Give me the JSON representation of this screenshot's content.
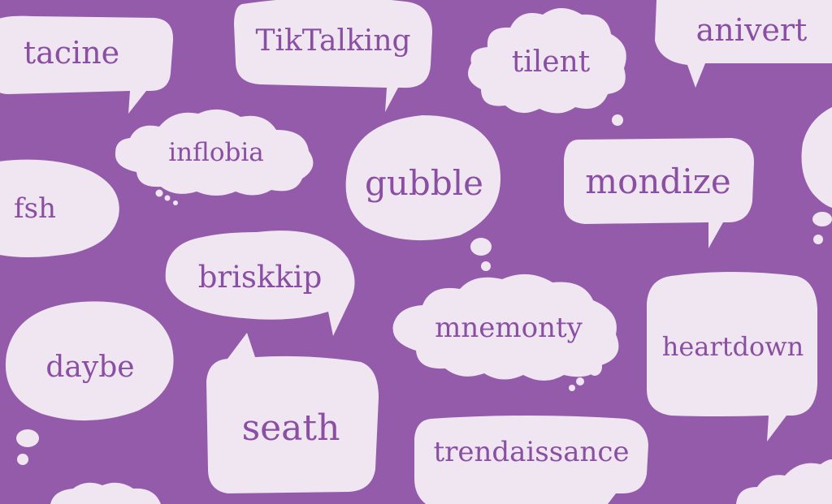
{
  "colors": {
    "background": "#945bab",
    "bubble": "#efe6f1",
    "text": "#8a4fa3"
  },
  "bubbles": [
    {
      "id": "tacine",
      "style": "speech",
      "text": "tacine"
    },
    {
      "id": "tiktalking",
      "style": "speech",
      "text": "TikTalking"
    },
    {
      "id": "tilent",
      "style": "thought",
      "text": "tilent"
    },
    {
      "id": "anivert",
      "style": "speech",
      "text": "anivert"
    },
    {
      "id": "inflobia",
      "style": "thought",
      "text": "inflobia"
    },
    {
      "id": "gubble",
      "style": "thought",
      "text": "gubble"
    },
    {
      "id": "mondize",
      "style": "speech",
      "text": "mondize"
    },
    {
      "id": "fsh",
      "style": "speech",
      "text": "fsh"
    },
    {
      "id": "briskkip",
      "style": "speech",
      "text": "briskkip"
    },
    {
      "id": "mnemonty",
      "style": "thought",
      "text": "mnemonty"
    },
    {
      "id": "daybe",
      "style": "thought",
      "text": "daybe"
    },
    {
      "id": "heartdown",
      "style": "speech",
      "text": "heartdown"
    },
    {
      "id": "seath",
      "style": "speech",
      "text": "seath"
    },
    {
      "id": "trendaissance",
      "style": "speech",
      "text": "trendaissance"
    }
  ]
}
